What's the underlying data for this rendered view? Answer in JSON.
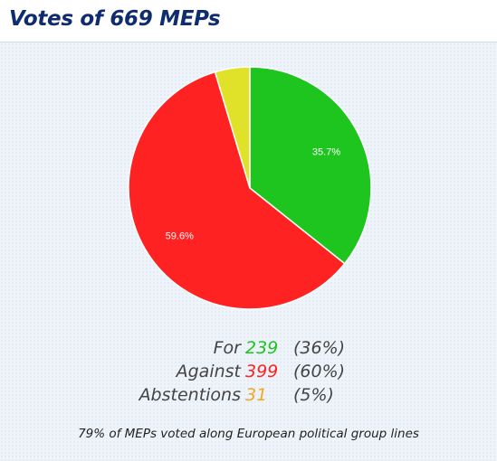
{
  "header": {
    "title": "Votes of 669 MEPs"
  },
  "chart_data": {
    "type": "pie",
    "categories": [
      "For",
      "Against",
      "Abstentions"
    ],
    "values": [
      239,
      399,
      31
    ],
    "slice_labels": [
      "35.7%",
      "59.6%",
      ""
    ],
    "colors": [
      "#1ec51e",
      "#ff2222",
      "#e0e22a"
    ],
    "label_colors": [
      "#1ec51e",
      "#ff2222",
      "#f5a623"
    ],
    "legend": {
      "rows": [
        {
          "label": "For",
          "count": "239",
          "pct": "(36%)"
        },
        {
          "label": "Against",
          "count": "399",
          "pct": "(60%)"
        },
        {
          "label": "Abstentions",
          "count": "31",
          "pct": "(5%)"
        }
      ]
    }
  },
  "footnote": "79% of MEPs voted along European political group lines"
}
